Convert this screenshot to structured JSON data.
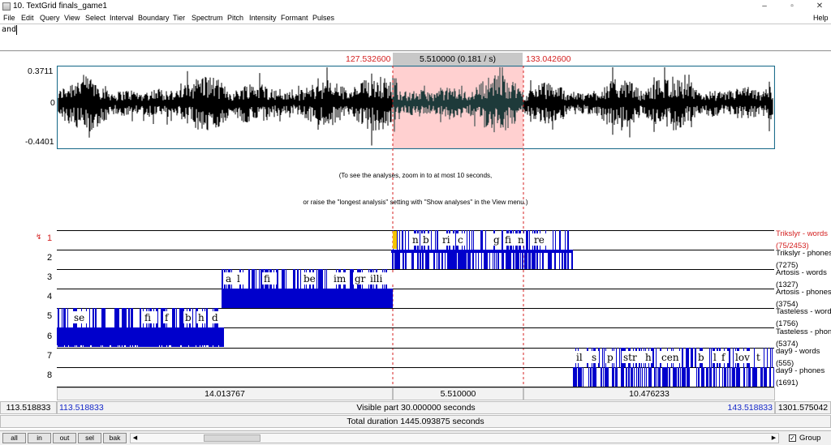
{
  "window": {
    "title": "10. TextGrid finals_game1",
    "minimize": "–",
    "maximize": "▫",
    "close": "✕"
  },
  "menu": {
    "items": [
      "File",
      "Edit",
      "Query",
      "View",
      "Select",
      "Interval",
      "Boundary",
      "Tier",
      "Spectrum",
      "Pitch",
      "Intensity",
      "Formant",
      "Pulses"
    ],
    "help": "Help"
  },
  "text_field": {
    "value": "and"
  },
  "selection": {
    "start": "127.532600",
    "end": "133.042600",
    "duration_label": "5.510000 (0.181 / s)"
  },
  "waveform": {
    "max_label": "0.3711",
    "zero_label": "0",
    "min_label": "-0.4401",
    "colors": {
      "wave": "#000000",
      "selection_bg": "#ffd0d0",
      "selected_wave": "#1e3a3a",
      "frame": "#1e6e8c"
    }
  },
  "analysis_message": {
    "line1": "(To see the analyses, zoom in to at most 10 seconds,",
    "line2": "or raise the \"longest analysis\" setting with \"Show analyses\" in the View menu.)"
  },
  "tiers": [
    {
      "number": "1",
      "name": "Trikslyr - words",
      "count": "(75/2453)",
      "active": true,
      "labels": [
        "n",
        "b",
        "ri",
        "c",
        "g",
        "fi",
        "n",
        "re"
      ]
    },
    {
      "number": "2",
      "name": "Trikslyr - phones",
      "count": "(7275)",
      "active": false,
      "labels": []
    },
    {
      "number": "3",
      "name": "Artosis - words",
      "count": "(1327)",
      "active": false,
      "labels": [
        "a",
        "l",
        "fi",
        "be",
        "im",
        "gr",
        "illi"
      ]
    },
    {
      "number": "4",
      "name": "Artosis - phones",
      "count": "(3754)",
      "active": false,
      "labels": []
    },
    {
      "number": "5",
      "name": "Tasteless - words",
      "count": "(1756)",
      "active": false,
      "labels": [
        "se",
        "fi",
        "f",
        "b",
        "h",
        "d"
      ]
    },
    {
      "number": "6",
      "name": "Tasteless - phones",
      "count": "(5374)",
      "active": false,
      "labels": []
    },
    {
      "number": "7",
      "name": "day9 - words",
      "count": "(555)",
      "active": false,
      "labels": [
        "il",
        "s",
        "p",
        "str",
        "h",
        "cen",
        "b",
        "l",
        "f",
        "lov",
        "t"
      ]
    },
    {
      "number": "8",
      "name": "day9 - phones",
      "count": "(1691)",
      "active": false,
      "labels": []
    }
  ],
  "active_tier_marker": "↯",
  "boundary_color": "#0000cc",
  "time_bar": {
    "left_duration": "14.013767",
    "selected_duration": "5.510000",
    "right_duration": "10.476233",
    "total_start": "113.518833",
    "visible_start": "113.518833",
    "visible_label": "Visible part 30.000000 seconds",
    "visible_end": "143.518833",
    "total_end": "1301.575042",
    "total_duration_label": "Total duration 1445.093875 seconds"
  },
  "zoom_buttons": [
    "all",
    "in",
    "out",
    "sel",
    "bak"
  ],
  "group": {
    "checked_mark": "✓",
    "label": "Group"
  }
}
